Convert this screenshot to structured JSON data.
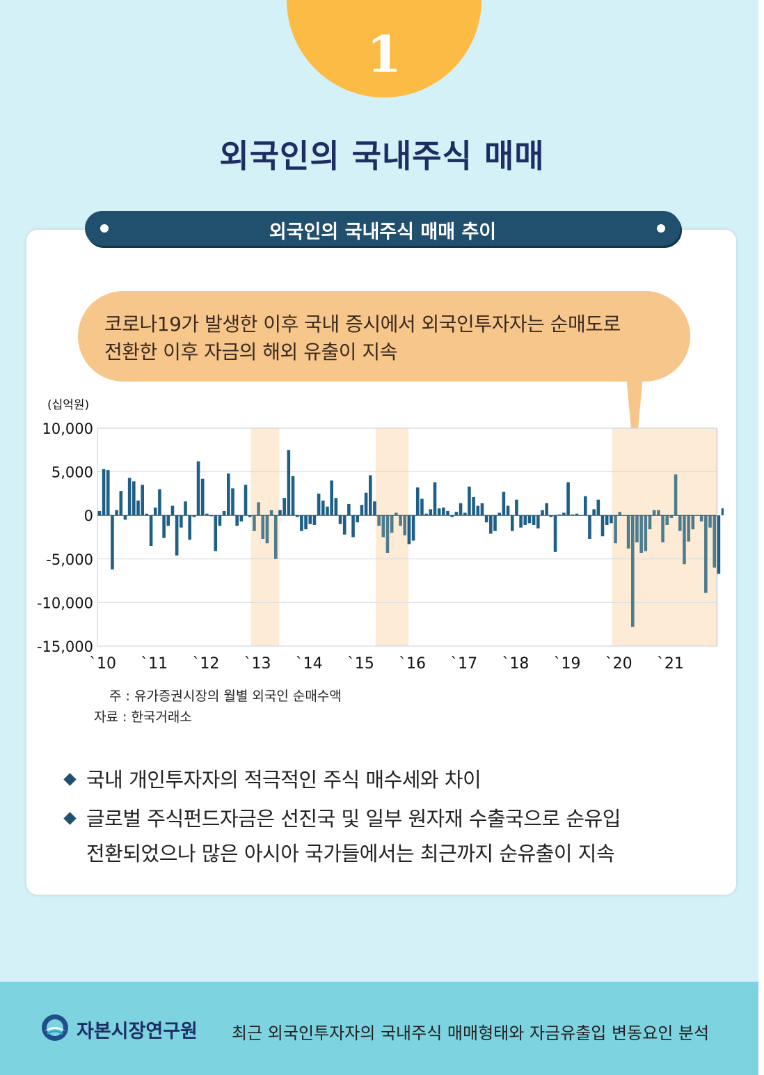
{
  "badge": {
    "number": "1"
  },
  "main_title": "외국인의 국내주식 매매",
  "chart_title": "외국인의 국내주식 매매 추이",
  "callout": {
    "lines": [
      "코로나19가 발생한 이후 국내 증시에서 외국인투자자는 순매도로",
      "전환한 이후 자금의 해외 유출이 지속"
    ]
  },
  "chart_data": {
    "type": "bar",
    "unit_label": "(십억원)",
    "ylim": [
      -15000,
      10000
    ],
    "y_ticks": [
      10000,
      5000,
      0,
      -5000,
      -10000,
      -15000
    ],
    "y_tick_labels": [
      "10,000",
      "5,000",
      "0",
      "-5,000",
      "-10,000",
      "-15,000"
    ],
    "x_tick_labels": [
      "`10",
      "`11",
      "`12",
      "`13",
      "`14",
      "`15",
      "`16",
      "`17",
      "`18",
      "`19",
      "`20",
      "`21"
    ],
    "x_range": [
      "2010-01",
      "2021-12"
    ],
    "grid": true,
    "highlight_periods": [
      [
        "2013-01",
        "2013-06"
      ],
      [
        "2015-06",
        "2015-12"
      ],
      [
        "2020-01",
        "2021-12"
      ]
    ],
    "colors": {
      "bar": "#1f5f86",
      "bar_highlight": "#4f7c8c",
      "shade": "#fdebd6"
    },
    "values": [
      500,
      5300,
      5200,
      -6200,
      600,
      2800,
      -500,
      4300,
      3900,
      1700,
      3500,
      200,
      -3500,
      900,
      3000,
      -2600,
      -1200,
      1100,
      -4600,
      -1400,
      1600,
      -2800,
      -200,
      6200,
      4200,
      200,
      -100,
      -4100,
      -1200,
      500,
      4800,
      3100,
      -1200,
      -700,
      3500,
      -200,
      -1800,
      1500,
      -2700,
      -3200,
      600,
      -5000,
      600,
      2000,
      7500,
      4500,
      -200,
      -1800,
      -1600,
      -1000,
      -1100,
      2500,
      1700,
      1000,
      4000,
      2000,
      -1000,
      -2200,
      1300,
      -2500,
      -800,
      1200,
      2600,
      4600,
      1600,
      -1200,
      -2500,
      -4300,
      -2000,
      300,
      -1200,
      -2300,
      -3300,
      -2900,
      3200,
      1900,
      200,
      700,
      3800,
      800,
      900,
      500,
      -200,
      400,
      1400,
      300,
      3300,
      2100,
      1100,
      1400,
      -800,
      -2100,
      -1800,
      300,
      2700,
      1100,
      -1800,
      1800,
      -1400,
      -1100,
      -900,
      -1100,
      -1500,
      600,
      1400,
      -200,
      -4200,
      100,
      300,
      3800,
      100,
      200,
      0,
      2200,
      -2700,
      700,
      1800,
      -2400,
      -1100,
      -900,
      -3200,
      400,
      0,
      -3800,
      -12800,
      -3100,
      -4300,
      -4100,
      -1600,
      600,
      600,
      -3100,
      -1100,
      -300,
      4700,
      -1800,
      -5600,
      -3000,
      -1600,
      0,
      -700,
      -8900,
      -1400,
      -6000,
      -6700,
      800
    ]
  },
  "notes": {
    "note": "주 : 유가증권시장의 월별 외국인 순매수액",
    "source": "자료 : 한국거래소"
  },
  "bullets": [
    {
      "lines": [
        "국내 개인투자자의 적극적인 주식 매수세와 차이"
      ]
    },
    {
      "lines": [
        "글로벌 주식펀드자금은 선진국 및 일부 원자재 수출국으로 순유입",
        "전환되었으나 많은 아시아 국가들에서는 최근까지 순유출이 지속"
      ]
    }
  ],
  "footer": {
    "org": "자본시장연구원",
    "report_title": "최근 외국인투자자의 국내주식 매매형태와 자금유출입 변동요인 분석"
  }
}
